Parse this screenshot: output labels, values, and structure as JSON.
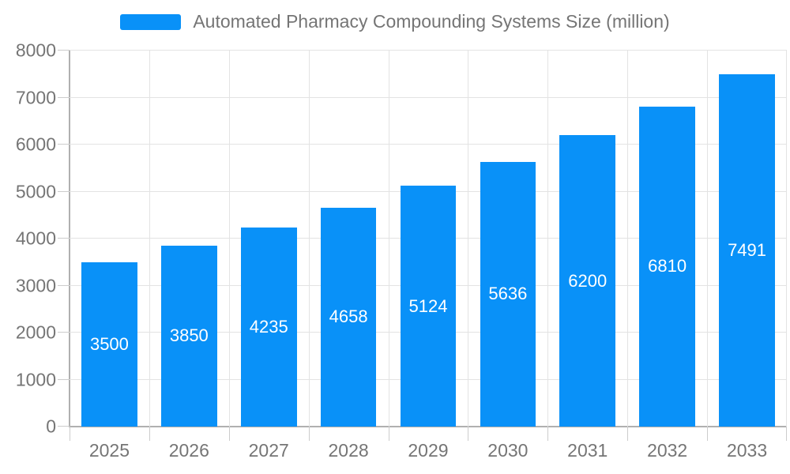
{
  "chart_data": {
    "type": "bar",
    "title": "",
    "legend_entries": [
      "Automated Pharmacy Compounding Systems Size (million)"
    ],
    "legend_position": "top-center",
    "categories": [
      "2025",
      "2026",
      "2027",
      "2028",
      "2029",
      "2030",
      "2031",
      "2032",
      "2033"
    ],
    "values": [
      3500,
      3850,
      4235,
      4658,
      5124,
      5636,
      6200,
      6810,
      7491
    ],
    "xlabel": "",
    "ylabel": "",
    "ylim": [
      0,
      8000
    ],
    "ytick_step": 1000,
    "y_tick_labels": [
      "0",
      "1000",
      "2000",
      "3000",
      "4000",
      "5000",
      "6000",
      "7000",
      "8000"
    ],
    "grid": "on",
    "bar_value_labels": "inside-center"
  },
  "legend": {
    "label": "Automated Pharmacy Compounding Systems Size (million)"
  },
  "colors": {
    "bar": "#0991f8",
    "bar_label_text": "#ffffff",
    "axis_text": "#757575",
    "legend_text": "#757575",
    "gridline": "#e3e3e3",
    "axis_line": "#b0b0b0",
    "tick": "#cccccc",
    "background": "#ffffff"
  }
}
